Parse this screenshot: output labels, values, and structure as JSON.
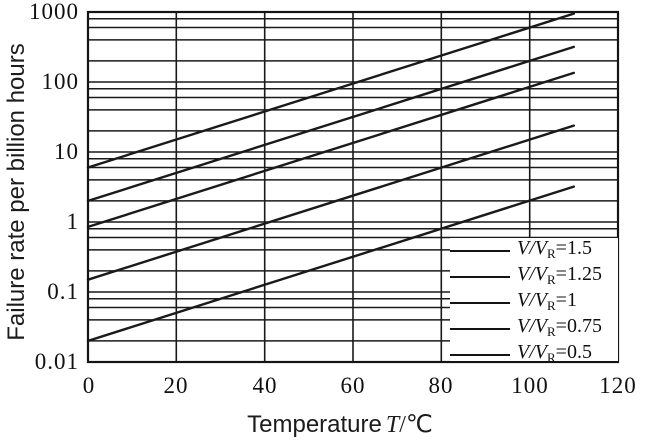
{
  "chart_data": {
    "type": "line",
    "title": "",
    "xlabel": {
      "text": "Temperature",
      "symbol": "T",
      "unit": "/℃"
    },
    "ylabel": "Failure rate per billion hours",
    "x_axis": {
      "min": 0,
      "max": 120,
      "ticks": [
        0,
        20,
        40,
        60,
        80,
        100,
        120
      ]
    },
    "y_axis": {
      "scale": "log",
      "min": 0.01,
      "max": 1000,
      "ticks": [
        1000,
        100,
        10,
        1,
        0.1,
        0.01
      ],
      "gridline_values": [
        0.02,
        0.04,
        0.06,
        0.08,
        0.1,
        0.2,
        0.4,
        0.6,
        0.8,
        1,
        2,
        4,
        6,
        8,
        10,
        20,
        40,
        60,
        80,
        100,
        200,
        400,
        600,
        800
      ]
    },
    "grid": true,
    "legend_position": "inside-bottom-right",
    "series": [
      {
        "name": "V/V_R=1.5",
        "legend": {
          "prefix": "V/V",
          "sub": "R",
          "value": "=1.5"
        },
        "x": [
          0,
          110
        ],
        "y": [
          6,
          950
        ]
      },
      {
        "name": "V/V_R=1.25",
        "legend": {
          "prefix": "V/V",
          "sub": "R",
          "value": "=1.25"
        },
        "x": [
          0,
          110
        ],
        "y": [
          2,
          317
        ]
      },
      {
        "name": "V/V_R=1",
        "legend": {
          "prefix": "V/V",
          "sub": "R",
          "value": "=1"
        },
        "x": [
          0,
          110
        ],
        "y": [
          0.85,
          135
        ]
      },
      {
        "name": "V/V_R=0.75",
        "legend": {
          "prefix": "V/V",
          "sub": "R",
          "value": "=0.75"
        },
        "x": [
          0,
          110
        ],
        "y": [
          0.15,
          23.8
        ]
      },
      {
        "name": "V/V_R=0.5",
        "legend": {
          "prefix": "V/V",
          "sub": "R",
          "value": "=0.5"
        },
        "x": [
          0,
          110
        ],
        "y": [
          0.02,
          3.2
        ]
      }
    ]
  }
}
